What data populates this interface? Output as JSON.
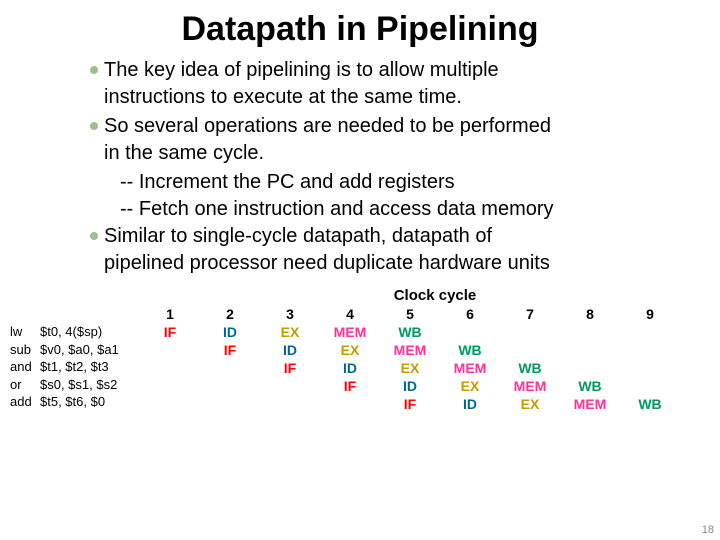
{
  "title": {
    "text": "Datapath in Pipelining",
    "fontsize": 34,
    "color": "#000000"
  },
  "bullets": {
    "fontsize": 20,
    "text_color": "#000000",
    "dot_color": "#9cbf8f",
    "items": [
      {
        "lines": [
          "The key idea of pipelining is to allow multiple",
          "instructions to execute at the same time."
        ]
      },
      {
        "lines": [
          "So several operations are needed to be performed",
          "in the same cycle."
        ],
        "subs": [
          "-- Increment the PC and add registers",
          "-- Fetch one instruction and access data memory"
        ]
      },
      {
        "lines": [
          "Similar to single-cycle datapath, datapath of",
          "pipelined processor need duplicate hardware units"
        ]
      }
    ]
  },
  "pipeline": {
    "clock_label": "Clock cycle",
    "clock_fontsize": 15,
    "cycles": [
      "1",
      "2",
      "3",
      "4",
      "5",
      "6",
      "7",
      "8",
      "9"
    ],
    "instructions": [
      {
        "mnemonic": "lw",
        "args": "$t0, 4($sp)"
      },
      {
        "mnemonic": "sub",
        "args": "$v0, $a0, $a1"
      },
      {
        "mnemonic": "and",
        "args": "$t1, $t2, $t3"
      },
      {
        "mnemonic": "or",
        "args": "$s0, $s1, $s2"
      },
      {
        "mnemonic": "add",
        "args": "$t5, $t6, $0"
      }
    ],
    "stage_colors": {
      "IF": "#ff0000",
      "ID": "#006699",
      "EX": "#c49a00",
      "MEM": "#ff3399",
      "WB": "#009966"
    },
    "header_color": "#000000",
    "rows": [
      [
        "IF",
        "ID",
        "EX",
        "MEM",
        "WB",
        "",
        "",
        "",
        ""
      ],
      [
        "",
        "IF",
        "ID",
        "EX",
        "MEM",
        "WB",
        "",
        "",
        ""
      ],
      [
        "",
        "",
        "IF",
        "ID",
        "EX",
        "MEM",
        "WB",
        "",
        ""
      ],
      [
        "",
        "",
        "",
        "IF",
        "ID",
        "EX",
        "MEM",
        "WB",
        ""
      ],
      [
        "",
        "",
        "",
        "",
        "IF",
        "ID",
        "EX",
        "MEM",
        "WB"
      ]
    ]
  },
  "pagenum": "18"
}
